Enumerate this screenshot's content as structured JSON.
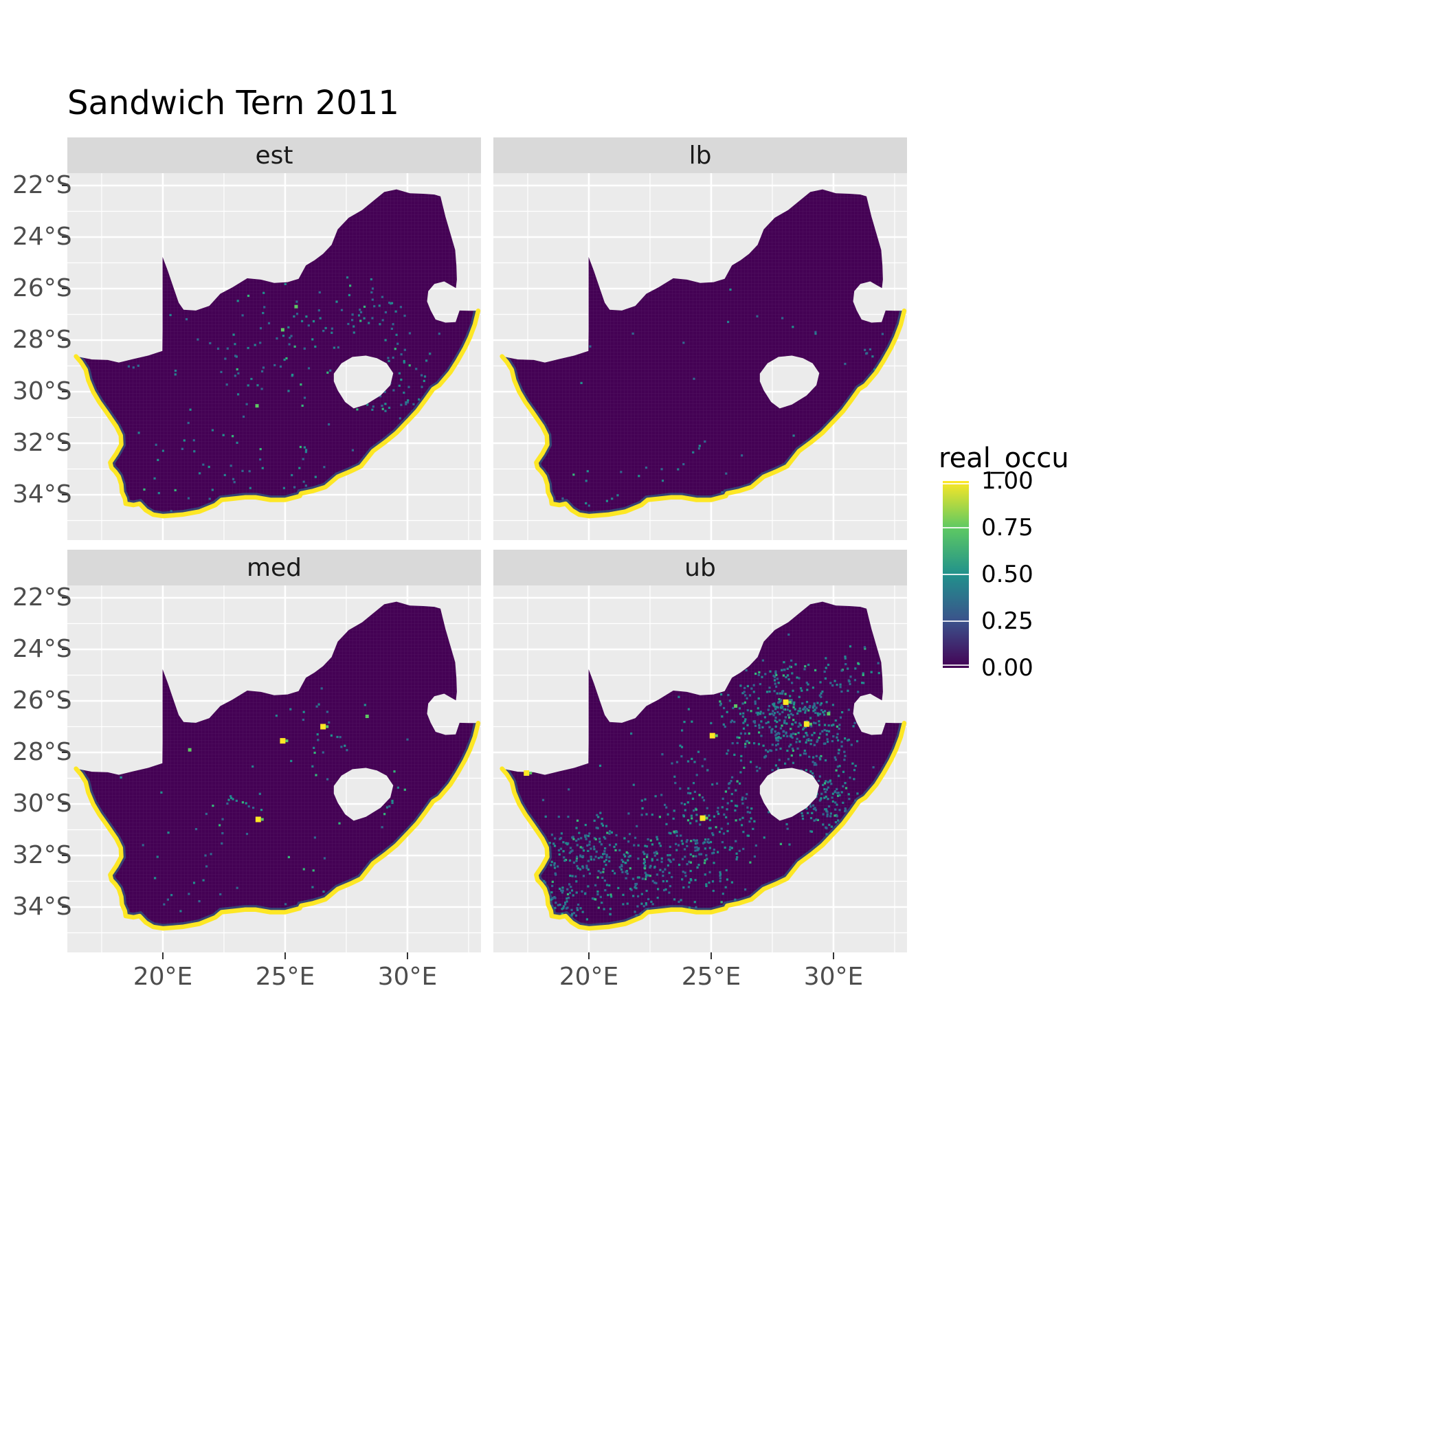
{
  "title": "Sandwich Tern 2011",
  "legend": {
    "title": "real_occu",
    "ticks": [
      "1.00",
      "0.75",
      "0.50",
      "0.25",
      "0.00"
    ],
    "colors": {
      "v0": "#440154",
      "v25": "#3B528B",
      "v50": "#21918C",
      "v75": "#5EC962",
      "v100": "#FDE725"
    }
  },
  "style": {
    "panel_bg": "#EBEBEB",
    "strip_bg": "#D9D9D9",
    "grid": "#FFFFFF",
    "land": "#440154",
    "coast": "#FDE725",
    "fringe": "#2A788E",
    "green_spot": "#5EC962",
    "axis_text": "#4D4D4D",
    "tick_mark": "#333333",
    "strip_text": "#1A1A1A",
    "title_color": "#000000",
    "speckle_palette": [
      "#31688E",
      "#26828E",
      "#21918C",
      "#35B779"
    ]
  },
  "axes": {
    "x_ticks": [
      {
        "label": "20°E",
        "deg": 20
      },
      {
        "label": "25°E",
        "deg": 25
      },
      {
        "label": "30°E",
        "deg": 30
      }
    ],
    "y_ticks": [
      {
        "label": "22°S",
        "deg": 22
      },
      {
        "label": "24°S",
        "deg": 24
      },
      {
        "label": "26°S",
        "deg": 26
      },
      {
        "label": "28°S",
        "deg": 28
      },
      {
        "label": "30°S",
        "deg": 30
      },
      {
        "label": "32°S",
        "deg": 32
      },
      {
        "label": "34°S",
        "deg": 34
      }
    ],
    "x_minor": [
      17.5,
      22.5,
      27.5,
      32.5
    ],
    "y_minor": [
      23,
      25,
      27,
      29,
      31,
      33,
      35
    ]
  },
  "chart_data": {
    "type": "heatmap",
    "title": "Sandwich Tern 2011",
    "geography": "South Africa",
    "variable": "real_occu",
    "value_range": [
      0,
      1
    ],
    "legend_breaks": [
      1.0,
      0.75,
      0.5,
      0.25,
      0.0
    ],
    "x_range_deg_east": [
      16.1,
      33.0
    ],
    "y_range_deg_south": [
      21.5,
      35.7
    ],
    "base_value_inland": 0.0,
    "coastal_strip_value": 1.0,
    "facets": [
      {
        "label": "est",
        "seed": 11,
        "regions": [
          {
            "lon": 26.0,
            "lat": 27.5,
            "r": 2.8,
            "n": 45
          },
          {
            "lon": 28.8,
            "lat": 27.0,
            "r": 1.6,
            "n": 30
          },
          {
            "lon": 29.5,
            "lat": 30.3,
            "r": 1.4,
            "n": 28
          },
          {
            "lon": 23.5,
            "lat": 29.0,
            "r": 2.5,
            "n": 22
          },
          {
            "lon": 21.5,
            "lat": 33.0,
            "r": 3.0,
            "n": 32
          },
          {
            "lon": 25.5,
            "lat": 33.6,
            "r": 3.0,
            "n": 28
          },
          {
            "lon": 30.2,
            "lat": 28.6,
            "r": 1.5,
            "n": 18
          },
          {
            "lon": 24.5,
            "lat": 29.5,
            "r": 8.0,
            "n": 40
          }
        ],
        "green_spots": [
          [
            23.85,
            30.55
          ],
          [
            24.9,
            27.6
          ],
          [
            25.45,
            26.7
          ]
        ],
        "yellow_spots": []
      },
      {
        "label": "lb",
        "seed": 22,
        "regions": [
          {
            "lon": 25.0,
            "lat": 33.9,
            "r": 3.5,
            "n": 16
          },
          {
            "lon": 28.0,
            "lat": 28.0,
            "r": 3.0,
            "n": 10
          },
          {
            "lon": 31.3,
            "lat": 28.6,
            "r": 1.2,
            "n": 8
          },
          {
            "lon": 20.0,
            "lat": 34.2,
            "r": 1.5,
            "n": 8
          },
          {
            "lon": 24.5,
            "lat": 29.5,
            "r": 8.0,
            "n": 14
          }
        ],
        "green_spots": [
          [
            24.0,
            34.15
          ]
        ],
        "yellow_spots": []
      },
      {
        "label": "med",
        "seed": 33,
        "regions": [
          {
            "lon": 26.0,
            "lat": 27.2,
            "r": 2.5,
            "n": 26
          },
          {
            "lon": 23.5,
            "lat": 30.0,
            "r": 2.0,
            "n": 16
          },
          {
            "lon": 28.8,
            "lat": 29.8,
            "r": 1.5,
            "n": 16
          },
          {
            "lon": 21.0,
            "lat": 33.0,
            "r": 2.5,
            "n": 16
          },
          {
            "lon": 25.0,
            "lat": 34.0,
            "r": 2.5,
            "n": 12
          },
          {
            "lon": 24.5,
            "lat": 29.5,
            "r": 8.0,
            "n": 20
          }
        ],
        "green_spots": [
          [
            21.1,
            27.9
          ],
          [
            28.35,
            26.6
          ]
        ],
        "yellow_spots": [
          [
            23.9,
            30.6
          ],
          [
            26.55,
            27.0
          ],
          [
            24.9,
            27.55
          ]
        ]
      },
      {
        "label": "ub",
        "seed": 44,
        "regions": [
          {
            "lon": 27.8,
            "lat": 26.3,
            "r": 2.6,
            "n": 260
          },
          {
            "lon": 29.6,
            "lat": 29.8,
            "r": 1.8,
            "n": 140
          },
          {
            "lon": 29.2,
            "lat": 27.5,
            "r": 2.0,
            "n": 120
          },
          {
            "lon": 21.5,
            "lat": 32.6,
            "r": 2.8,
            "n": 200
          },
          {
            "lon": 19.3,
            "lat": 31.8,
            "r": 1.8,
            "n": 90
          },
          {
            "lon": 24.5,
            "lat": 32.0,
            "r": 3.2,
            "n": 160
          },
          {
            "lon": 25.5,
            "lat": 29.5,
            "r": 3.0,
            "n": 90
          },
          {
            "lon": 18.8,
            "lat": 33.8,
            "r": 1.2,
            "n": 60
          },
          {
            "lon": 30.8,
            "lat": 25.0,
            "r": 1.5,
            "n": 40
          },
          {
            "lon": 24.5,
            "lat": 29.0,
            "r": 8.5,
            "n": 120
          }
        ],
        "green_spots": [
          [
            26.0,
            26.2
          ],
          [
            29.8,
            26.5
          ]
        ],
        "yellow_spots": [
          [
            25.05,
            27.35
          ],
          [
            28.05,
            26.05
          ],
          [
            24.65,
            30.55
          ],
          [
            17.45,
            28.8
          ],
          [
            28.9,
            26.9
          ]
        ]
      }
    ],
    "map_outline": {
      "border": [
        [
          16.45,
          28.63
        ],
        [
          17.1,
          28.75
        ],
        [
          17.75,
          28.77
        ],
        [
          18.2,
          28.87
        ],
        [
          18.85,
          28.72
        ],
        [
          19.4,
          28.6
        ],
        [
          19.98,
          28.42
        ],
        [
          19.99,
          27.6
        ],
        [
          19.99,
          26.6
        ],
        [
          19.99,
          25.6
        ],
        [
          19.99,
          24.77
        ],
        [
          20.2,
          25.3
        ],
        [
          20.45,
          26.0
        ],
        [
          20.65,
          26.55
        ],
        [
          20.85,
          26.82
        ],
        [
          21.35,
          26.85
        ],
        [
          21.9,
          26.67
        ],
        [
          22.35,
          26.2
        ],
        [
          22.85,
          25.95
        ],
        [
          23.45,
          25.6
        ],
        [
          24.0,
          25.65
        ],
        [
          24.55,
          25.78
        ],
        [
          25.1,
          25.75
        ],
        [
          25.55,
          25.62
        ],
        [
          25.85,
          25.1
        ],
        [
          26.2,
          24.9
        ],
        [
          26.55,
          24.65
        ],
        [
          26.9,
          24.3
        ],
        [
          27.15,
          23.7
        ],
        [
          27.6,
          23.25
        ],
        [
          28.15,
          22.95
        ],
        [
          28.6,
          22.6
        ],
        [
          29.05,
          22.25
        ],
        [
          29.55,
          22.15
        ],
        [
          30.1,
          22.3
        ],
        [
          30.65,
          22.32
        ],
        [
          31.1,
          22.35
        ],
        [
          31.35,
          22.42
        ],
        [
          31.55,
          23.2
        ],
        [
          31.75,
          23.85
        ],
        [
          31.95,
          24.5
        ],
        [
          32.0,
          25.1
        ],
        [
          32.02,
          25.65
        ],
        [
          31.98,
          25.98
        ],
        [
          31.5,
          25.72
        ],
        [
          31.1,
          25.82
        ],
        [
          30.85,
          26.1
        ],
        [
          30.8,
          26.5
        ],
        [
          30.95,
          26.85
        ],
        [
          31.15,
          27.2
        ],
        [
          31.55,
          27.32
        ],
        [
          31.97,
          27.3
        ],
        [
          32.13,
          26.85
        ],
        [
          32.5,
          26.86
        ],
        [
          32.89,
          26.86
        ]
      ],
      "coast": [
        [
          32.89,
          26.86
        ],
        [
          32.75,
          27.4
        ],
        [
          32.55,
          27.9
        ],
        [
          32.35,
          28.3
        ],
        [
          32.05,
          28.8
        ],
        [
          31.75,
          29.25
        ],
        [
          31.3,
          29.75
        ],
        [
          31.05,
          29.9
        ],
        [
          30.75,
          30.3
        ],
        [
          30.4,
          30.75
        ],
        [
          30.05,
          31.1
        ],
        [
          29.55,
          31.6
        ],
        [
          29.1,
          31.95
        ],
        [
          28.6,
          32.3
        ],
        [
          28.1,
          32.9
        ],
        [
          27.65,
          33.1
        ],
        [
          27.15,
          33.3
        ],
        [
          26.65,
          33.7
        ],
        [
          26.15,
          33.85
        ],
        [
          25.65,
          33.95
        ],
        [
          25.6,
          34.05
        ],
        [
          25.0,
          34.2
        ],
        [
          24.4,
          34.2
        ],
        [
          23.8,
          34.1
        ],
        [
          23.35,
          34.1
        ],
        [
          22.9,
          34.15
        ],
        [
          22.4,
          34.2
        ],
        [
          22.15,
          34.4
        ],
        [
          21.5,
          34.65
        ],
        [
          20.8,
          34.77
        ],
        [
          20.0,
          34.83
        ],
        [
          19.6,
          34.77
        ],
        [
          19.3,
          34.6
        ],
        [
          19.05,
          34.35
        ],
        [
          18.8,
          34.4
        ],
        [
          18.48,
          34.35
        ],
        [
          18.45,
          34.15
        ],
        [
          18.33,
          33.9
        ],
        [
          18.3,
          33.6
        ],
        [
          18.2,
          33.3
        ],
        [
          18.05,
          33.1
        ],
        [
          17.9,
          32.95
        ],
        [
          17.85,
          32.75
        ],
        [
          18.1,
          32.4
        ],
        [
          18.3,
          32.05
        ],
        [
          18.28,
          31.7
        ],
        [
          18.1,
          31.35
        ],
        [
          17.7,
          30.8
        ],
        [
          17.4,
          30.4
        ],
        [
          17.15,
          30.0
        ],
        [
          16.95,
          29.55
        ],
        [
          16.85,
          29.15
        ],
        [
          16.65,
          28.85
        ],
        [
          16.45,
          28.63
        ]
      ],
      "lesotho_hole": [
        [
          26.99,
          29.3
        ],
        [
          27.3,
          28.9
        ],
        [
          27.75,
          28.65
        ],
        [
          28.3,
          28.6
        ],
        [
          28.75,
          28.7
        ],
        [
          29.15,
          28.9
        ],
        [
          29.42,
          29.28
        ],
        [
          29.3,
          29.75
        ],
        [
          28.9,
          30.15
        ],
        [
          28.3,
          30.5
        ],
        [
          27.8,
          30.65
        ],
        [
          27.45,
          30.4
        ],
        [
          27.15,
          29.95
        ],
        [
          26.99,
          29.6
        ]
      ]
    }
  }
}
